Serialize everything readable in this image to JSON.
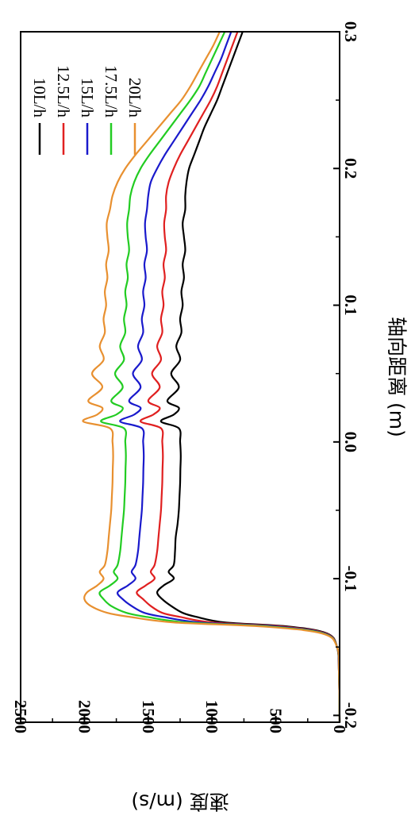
{
  "chart_data": {
    "type": "line",
    "orientation": "rotated 90° clockwise (x axis runs vertically along the right side)",
    "xlabel": "轴向距离 (m)",
    "ylabel": "速度 (m/s)",
    "xlim": [
      -0.205,
      0.3
    ],
    "ylim": [
      0,
      2500
    ],
    "x_ticks": [
      "-0.2",
      "-0.1",
      "0.0",
      "0.1",
      "0.2",
      "0.3"
    ],
    "x_tick_values": [
      -0.2,
      -0.1,
      0.0,
      0.1,
      0.2,
      0.3
    ],
    "y_ticks": [
      "0",
      "500",
      "1000",
      "1500",
      "2000",
      "2500"
    ],
    "y_tick_values": [
      0,
      500,
      1000,
      1500,
      2000,
      2500
    ],
    "legend_position": "upper corner (top-right of rotated view)",
    "grid": false,
    "series": [
      {
        "name": "10L/h",
        "color": "#000000",
        "x": [
          -0.205,
          -0.17,
          -0.15,
          -0.14,
          -0.135,
          -0.132,
          -0.128,
          -0.125,
          -0.12,
          -0.115,
          -0.11,
          -0.105,
          -0.1,
          -0.095,
          -0.09,
          -0.08,
          -0.07,
          -0.06,
          -0.05,
          -0.04,
          -0.03,
          -0.02,
          -0.01,
          0.0,
          0.01,
          0.015,
          0.02,
          0.025,
          0.03,
          0.04,
          0.05,
          0.06,
          0.07,
          0.08,
          0.09,
          0.1,
          0.11,
          0.12,
          0.13,
          0.14,
          0.15,
          0.16,
          0.17,
          0.18,
          0.19,
          0.2,
          0.21,
          0.22,
          0.23,
          0.24,
          0.25,
          0.26,
          0.27,
          0.28,
          0.29,
          0.3
        ],
        "y": [
          0,
          5,
          20,
          100,
          400,
          900,
          1120,
          1230,
          1320,
          1390,
          1430,
          1380,
          1300,
          1340,
          1300,
          1290,
          1285,
          1270,
          1260,
          1255,
          1250,
          1248,
          1245,
          1250,
          1260,
          1400,
          1300,
          1260,
          1350,
          1260,
          1320,
          1250,
          1280,
          1240,
          1250,
          1230,
          1240,
          1220,
          1230,
          1210,
          1220,
          1230,
          1210,
          1210,
          1200,
          1180,
          1140,
          1100,
          1060,
          1010,
          960,
          920,
          880,
          840,
          800,
          760
        ]
      },
      {
        "name": "12.5L/h",
        "color": "#e02020",
        "x": [
          -0.205,
          -0.17,
          -0.15,
          -0.14,
          -0.135,
          -0.132,
          -0.128,
          -0.125,
          -0.12,
          -0.115,
          -0.11,
          -0.105,
          -0.1,
          -0.095,
          -0.09,
          -0.08,
          -0.07,
          -0.06,
          -0.05,
          -0.04,
          -0.03,
          -0.02,
          -0.01,
          0.0,
          0.01,
          0.015,
          0.02,
          0.025,
          0.03,
          0.04,
          0.05,
          0.06,
          0.07,
          0.08,
          0.09,
          0.1,
          0.11,
          0.12,
          0.13,
          0.14,
          0.15,
          0.16,
          0.17,
          0.18,
          0.19,
          0.2,
          0.21,
          0.22,
          0.23,
          0.24,
          0.25,
          0.26,
          0.27,
          0.28,
          0.29,
          0.3
        ],
        "y": [
          0,
          5,
          20,
          110,
          450,
          1000,
          1250,
          1390,
          1480,
          1540,
          1590,
          1520,
          1450,
          1480,
          1450,
          1430,
          1420,
          1410,
          1400,
          1395,
          1390,
          1388,
          1385,
          1390,
          1400,
          1560,
          1460,
          1410,
          1500,
          1410,
          1470,
          1400,
          1430,
          1390,
          1400,
          1380,
          1390,
          1370,
          1380,
          1360,
          1370,
          1375,
          1360,
          1360,
          1340,
          1300,
          1250,
          1190,
          1130,
          1070,
          1010,
          960,
          920,
          880,
          840,
          800
        ]
      },
      {
        "name": "15L/h",
        "color": "#1a1acc",
        "x": [
          -0.205,
          -0.17,
          -0.15,
          -0.14,
          -0.135,
          -0.132,
          -0.128,
          -0.125,
          -0.12,
          -0.115,
          -0.11,
          -0.105,
          -0.1,
          -0.095,
          -0.09,
          -0.08,
          -0.07,
          -0.06,
          -0.05,
          -0.04,
          -0.03,
          -0.02,
          -0.01,
          0.0,
          0.01,
          0.015,
          0.02,
          0.025,
          0.03,
          0.04,
          0.05,
          0.06,
          0.07,
          0.08,
          0.09,
          0.1,
          0.11,
          0.12,
          0.13,
          0.14,
          0.15,
          0.16,
          0.17,
          0.18,
          0.19,
          0.2,
          0.21,
          0.22,
          0.23,
          0.24,
          0.25,
          0.26,
          0.27,
          0.28,
          0.29,
          0.3
        ],
        "y": [
          0,
          5,
          20,
          120,
          500,
          1100,
          1380,
          1530,
          1630,
          1700,
          1740,
          1660,
          1600,
          1630,
          1600,
          1580,
          1570,
          1560,
          1550,
          1545,
          1540,
          1538,
          1535,
          1540,
          1550,
          1720,
          1610,
          1560,
          1650,
          1560,
          1620,
          1550,
          1580,
          1540,
          1550,
          1530,
          1540,
          1520,
          1530,
          1510,
          1520,
          1525,
          1510,
          1500,
          1480,
          1430,
          1370,
          1300,
          1230,
          1160,
          1090,
          1030,
          980,
          930,
          890,
          850
        ]
      },
      {
        "name": "17.5L/h",
        "color": "#22cc22",
        "x": [
          -0.205,
          -0.17,
          -0.15,
          -0.14,
          -0.135,
          -0.132,
          -0.128,
          -0.125,
          -0.12,
          -0.115,
          -0.11,
          -0.105,
          -0.1,
          -0.095,
          -0.09,
          -0.08,
          -0.07,
          -0.06,
          -0.05,
          -0.04,
          -0.03,
          -0.02,
          -0.01,
          0.0,
          0.01,
          0.015,
          0.02,
          0.025,
          0.03,
          0.04,
          0.05,
          0.06,
          0.07,
          0.08,
          0.09,
          0.1,
          0.11,
          0.12,
          0.13,
          0.14,
          0.15,
          0.16,
          0.17,
          0.18,
          0.19,
          0.2,
          0.21,
          0.22,
          0.23,
          0.24,
          0.25,
          0.26,
          0.27,
          0.28,
          0.29,
          0.3
        ],
        "y": [
          0,
          5,
          20,
          130,
          550,
          1200,
          1510,
          1670,
          1790,
          1850,
          1880,
          1800,
          1740,
          1770,
          1740,
          1720,
          1710,
          1700,
          1690,
          1685,
          1680,
          1678,
          1675,
          1680,
          1690,
          1870,
          1750,
          1700,
          1790,
          1700,
          1760,
          1690,
          1720,
          1680,
          1690,
          1670,
          1680,
          1660,
          1670,
          1650,
          1660,
          1665,
          1650,
          1640,
          1610,
          1560,
          1490,
          1410,
          1330,
          1250,
          1170,
          1100,
          1050,
          1000,
          950,
          900
        ]
      },
      {
        "name": "20L/h",
        "color": "#e89030",
        "x": [
          -0.205,
          -0.17,
          -0.15,
          -0.14,
          -0.135,
          -0.132,
          -0.128,
          -0.125,
          -0.12,
          -0.115,
          -0.11,
          -0.105,
          -0.1,
          -0.095,
          -0.09,
          -0.08,
          -0.07,
          -0.06,
          -0.05,
          -0.04,
          -0.03,
          -0.02,
          -0.01,
          0.0,
          0.01,
          0.015,
          0.02,
          0.025,
          0.03,
          0.04,
          0.05,
          0.06,
          0.07,
          0.08,
          0.09,
          0.1,
          0.11,
          0.12,
          0.13,
          0.14,
          0.15,
          0.16,
          0.17,
          0.18,
          0.19,
          0.2,
          0.21,
          0.22,
          0.23,
          0.24,
          0.25,
          0.26,
          0.27,
          0.28,
          0.29,
          0.3
        ],
        "y": [
          0,
          5,
          20,
          140,
          600,
          1300,
          1640,
          1820,
          1950,
          2000,
          1980,
          1900,
          1850,
          1880,
          1840,
          1820,
          1810,
          1800,
          1790,
          1785,
          1780,
          1778,
          1775,
          1780,
          1800,
          2010,
          1900,
          1860,
          1970,
          1860,
          1940,
          1850,
          1880,
          1840,
          1850,
          1830,
          1840,
          1820,
          1830,
          1810,
          1820,
          1825,
          1800,
          1780,
          1740,
          1680,
          1600,
          1510,
          1420,
          1330,
          1240,
          1170,
          1110,
          1050,
          990,
          940
        ]
      }
    ]
  }
}
